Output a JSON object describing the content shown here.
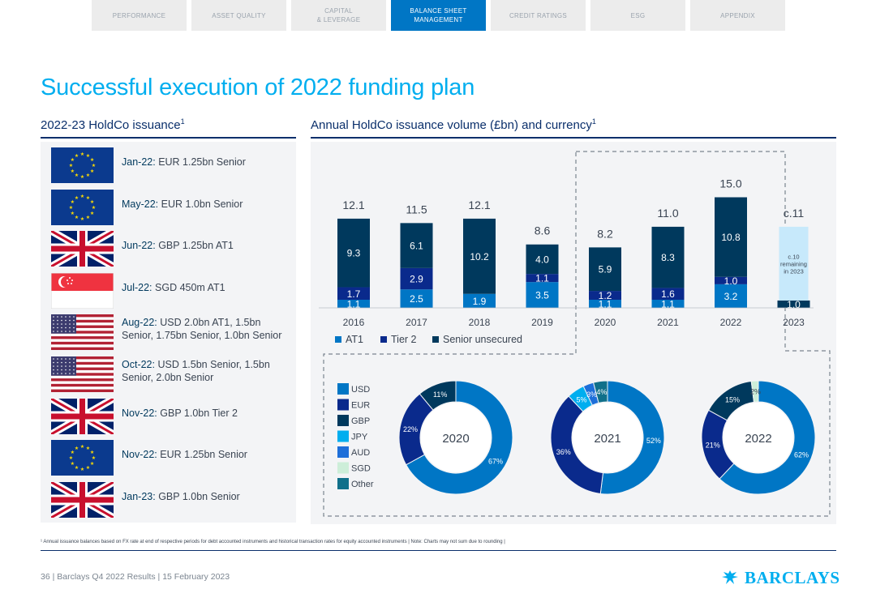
{
  "nav": {
    "tabs": [
      {
        "label": "PERFORMANCE",
        "active": false
      },
      {
        "label": "ASSET QUALITY",
        "active": false
      },
      {
        "label": "CAPITAL\n& LEVERAGE",
        "active": false
      },
      {
        "label": "BALANCE SHEET\nMANAGEMENT",
        "active": true
      },
      {
        "label": "CREDIT RATINGS",
        "active": false
      },
      {
        "label": "ESG",
        "active": false
      },
      {
        "label": "APPENDIX",
        "active": false
      }
    ]
  },
  "page": {
    "title": "Successful execution of 2022 funding plan",
    "left_heading": "2022-23 HoldCo issuance",
    "left_heading_sup": "1",
    "right_heading": "Annual HoldCo issuance volume (£bn) and currency",
    "right_heading_sup": "1"
  },
  "issuance": [
    {
      "date": "Jan-22:",
      "text": "EUR 1.25bn Senior",
      "flag": "eu-flag-icon"
    },
    {
      "date": "May-22:",
      "text": "EUR 1.0bn Senior",
      "flag": "eu-flag-icon"
    },
    {
      "date": "Jun-22:",
      "text": "GBP 1.25bn AT1",
      "flag": "uk-flag-icon"
    },
    {
      "date": "Jul-22:",
      "text": "SGD 450m AT1",
      "flag": "singapore-flag-icon"
    },
    {
      "date": "Aug-22:",
      "text": "USD 2.0bn AT1, 1.5bn Senior, 1.75bn Senior, 1.0bn Senior",
      "flag": "us-flag-icon"
    },
    {
      "date": "Oct-22:",
      "text": "USD 1.5bn Senior, 1.5bn Senior, 2.0bn Senior",
      "flag": "us-flag-icon"
    },
    {
      "date": "Nov-22:",
      "text": "GBP 1.0bn Tier 2",
      "flag": "uk-flag-icon"
    },
    {
      "date": "Nov-22:",
      "text": "EUR 1.25bn Senior",
      "flag": "eu-flag-icon"
    },
    {
      "date": "Jan-23:",
      "text": "GBP 1.0bn Senior",
      "flag": "uk-flag-icon"
    }
  ],
  "chart_data": [
    {
      "type": "bar",
      "stacked": true,
      "title": "Annual HoldCo issuance volume (£bn) and currency",
      "categories": [
        "2016",
        "2017",
        "2018",
        "2019",
        "2020",
        "2021",
        "2022",
        "2023"
      ],
      "series": [
        {
          "name": "AT1",
          "values": [
            1.1,
            2.5,
            1.9,
            3.5,
            1.1,
            1.1,
            3.2,
            null
          ],
          "labels": [
            "1.1",
            "2.5",
            "1.9",
            "3.5",
            "1.1",
            "1.1",
            "3.2",
            ""
          ]
        },
        {
          "name": "Tier 2",
          "values": [
            1.7,
            2.9,
            null,
            1.1,
            1.2,
            1.6,
            1.0,
            null
          ],
          "labels": [
            "1.7",
            "2.9",
            "",
            "1.1",
            "1.2",
            "1.6",
            "1.0",
            ""
          ]
        },
        {
          "name": "Senior unsecured",
          "values": [
            9.3,
            6.1,
            10.2,
            4.0,
            5.9,
            8.3,
            10.8,
            1.0
          ],
          "labels": [
            "9.3",
            "6.1",
            "10.2",
            "4.0",
            "5.9",
            "8.3",
            "10.8",
            "1.0"
          ]
        }
      ],
      "totals": [
        "12.1",
        "11.5",
        "12.1",
        "8.6",
        "8.2",
        "11.0",
        "15.0",
        "c.11"
      ],
      "projection": {
        "category": "2023",
        "value": 10,
        "label": "c.10 remaining in 2023"
      },
      "colors": {
        "AT1": "#0076c5",
        "Tier 2": "#0a2a8c",
        "Senior unsecured": "#00395d",
        "projection": "#c7e9fb"
      }
    },
    {
      "type": "pie",
      "legend": [
        {
          "name": "USD",
          "color": "#0076c5"
        },
        {
          "name": "EUR",
          "color": "#0a2a8c"
        },
        {
          "name": "GBP",
          "color": "#00395d"
        },
        {
          "name": "JPY",
          "color": "#00aeef"
        },
        {
          "name": "AUD",
          "color": "#1e6fd9"
        },
        {
          "name": "SGD",
          "color": "#cdeed9"
        },
        {
          "name": "Other",
          "color": "#10708a"
        }
      ],
      "donuts": [
        {
          "year": "2020",
          "slices": [
            {
              "name": "USD",
              "value": 67,
              "label": "67%"
            },
            {
              "name": "EUR",
              "value": 22,
              "label": "22%"
            },
            {
              "name": "GBP",
              "value": 11,
              "label": "11%"
            }
          ]
        },
        {
          "year": "2021",
          "slices": [
            {
              "name": "USD",
              "value": 52,
              "label": "52%"
            },
            {
              "name": "EUR",
              "value": 36,
              "label": "36%"
            },
            {
              "name": "JPY",
              "value": 5,
              "label": "5%"
            },
            {
              "name": "AUD",
              "value": 3,
              "label": "3%"
            },
            {
              "name": "Other",
              "value": 4,
              "label": "4%"
            }
          ]
        },
        {
          "year": "2022",
          "slices": [
            {
              "name": "USD",
              "value": 62,
              "label": "62%"
            },
            {
              "name": "EUR",
              "value": 21,
              "label": "21%"
            },
            {
              "name": "GBP",
              "value": 15,
              "label": "15%"
            },
            {
              "name": "SGD",
              "value": 2,
              "label": "2%"
            }
          ]
        }
      ]
    }
  ],
  "footnote": "¹ Annual issuance balances based on FX rate at end of respective periods for debt accounted instruments and historical transaction rates for equity accounted instruments | Note: Charts may not sum due to rounding |",
  "footer": {
    "text": "36  |  Barclays Q4 2022 Results  |  15 February 2023",
    "logo": "BARCLAYS"
  }
}
